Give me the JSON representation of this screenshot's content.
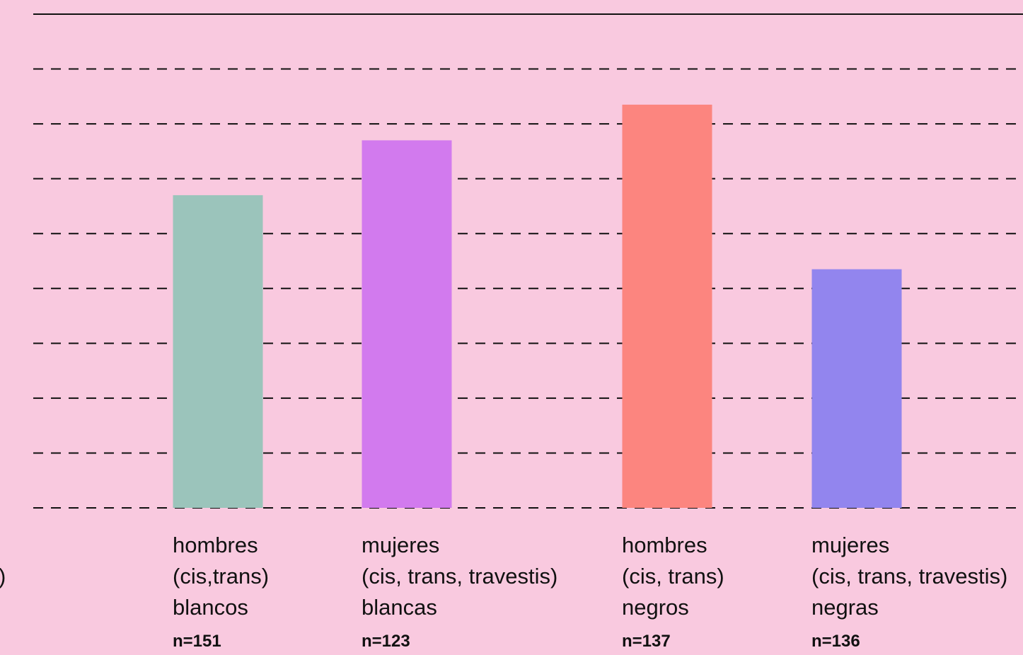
{
  "chart_data": {
    "type": "bar",
    "categories": [
      {
        "lines": [
          "",
          "",
          "",
          ""
        ],
        "partial_glyph": ")"
      },
      {
        "lines": [
          "hombres",
          "(cis,trans)",
          "blancos"
        ],
        "n": "n=151"
      },
      {
        "lines": [
          "mujeres",
          "(cis, trans, travestis)",
          "blancas"
        ],
        "n": "n=123"
      },
      {
        "lines": [
          "hombres",
          "(cis, trans)",
          "negros"
        ],
        "n": "n=137"
      },
      {
        "lines": [
          "mujeres",
          "(cis, trans, travestis)",
          "negras"
        ],
        "n": "n=136"
      }
    ],
    "values": [
      null,
      5.7,
      6.7,
      7.35,
      4.35
    ],
    "ylim": [
      0,
      9
    ],
    "grid": true,
    "gridlines": 9,
    "bar_colors": [
      "#9bc4bb",
      "#d27aee",
      "#fc857f",
      "#9285ee"
    ],
    "axis_color": "#111111",
    "background": "#f9c9df"
  }
}
